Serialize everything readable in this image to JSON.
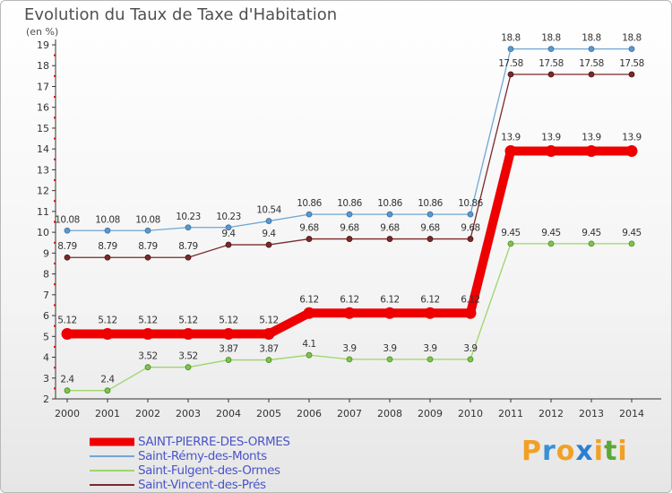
{
  "title": "Evolution du Taux de Taxe d'Habitation",
  "unit": "(en %)",
  "brand": {
    "letters": [
      "P",
      "r",
      "o",
      "x",
      "i",
      "t",
      "i"
    ],
    "colors": [
      "#f2a024",
      "#3b8fd4",
      "#f2a024",
      "#2c7fd0",
      "#f2a024",
      "#5aa83a",
      "#f2a024"
    ]
  },
  "chart_data": {
    "type": "line",
    "title": "Evolution du Taux de Taxe d'Habitation",
    "ylabel": "(en %)",
    "xlabel": "",
    "x": [
      "2000",
      "2001",
      "2002",
      "2003",
      "2004",
      "2005",
      "2006",
      "2007",
      "2008",
      "2009",
      "2010",
      "2011",
      "2012",
      "2013",
      "2014"
    ],
    "ylim": [
      2,
      19
    ],
    "yticks": [
      "2",
      "3",
      "4",
      "5",
      "6",
      "7",
      "8",
      "9",
      "10",
      "11",
      "12",
      "13",
      "14",
      "15",
      "16",
      "17",
      "18",
      "19"
    ],
    "grid": false,
    "legend_position": "bottom-left",
    "series": [
      {
        "name": "SAINT-PIERRE-DES-ORMES",
        "color": "#ff0000",
        "values": [
          5.12,
          5.12,
          5.12,
          5.12,
          5.12,
          5.12,
          6.12,
          6.12,
          6.12,
          6.12,
          6.12,
          13.9,
          13.9,
          13.9,
          13.9
        ],
        "labels": [
          "5.12",
          "5.12",
          "5.12",
          "5.12",
          "5.12",
          "5.12",
          "6.12",
          "6.12",
          "6.12",
          "6.12",
          "6.12",
          "13.9",
          "13.9",
          "13.9",
          "13.9"
        ]
      },
      {
        "name": "Saint-Rémy-des-Monts",
        "color": "#6fa7d6",
        "values": [
          10.08,
          10.08,
          10.08,
          10.23,
          10.23,
          10.54,
          10.86,
          10.86,
          10.86,
          10.86,
          10.86,
          18.8,
          18.8,
          18.8,
          18.8
        ],
        "labels": [
          "10.08",
          "10.08",
          "10.08",
          "10.23",
          "10.23",
          "10.54",
          "10.86",
          "10.86",
          "10.86",
          "10.86",
          "10.86",
          "18.8",
          "18.8",
          "18.8",
          "18.8"
        ]
      },
      {
        "name": "Saint-Fulgent-des-Ormes",
        "color": "#9ed56b",
        "values": [
          2.4,
          2.4,
          3.52,
          3.52,
          3.87,
          3.87,
          4.1,
          3.9,
          3.9,
          3.9,
          3.9,
          9.45,
          9.45,
          9.45,
          9.45
        ],
        "labels": [
          "2.4",
          "2.4",
          "3.52",
          "3.52",
          "3.87",
          "3.87",
          "4.1",
          "3.9",
          "3.9",
          "3.9",
          "3.9",
          "9.45",
          "9.45",
          "9.45",
          "9.45"
        ]
      },
      {
        "name": "Saint-Vincent-des-Prés",
        "color": "#7a2a2a",
        "values": [
          8.79,
          8.79,
          8.79,
          8.79,
          9.4,
          9.4,
          9.68,
          9.68,
          9.68,
          9.68,
          9.68,
          17.58,
          17.58,
          17.58,
          17.58
        ],
        "labels": [
          "8.79",
          "8.79",
          "8.79",
          "8.79",
          "9.4",
          "9.4",
          "9.68",
          "9.68",
          "9.68",
          "9.68",
          "9.68",
          "17.58",
          "17.58",
          "17.58",
          "17.58"
        ]
      }
    ]
  }
}
